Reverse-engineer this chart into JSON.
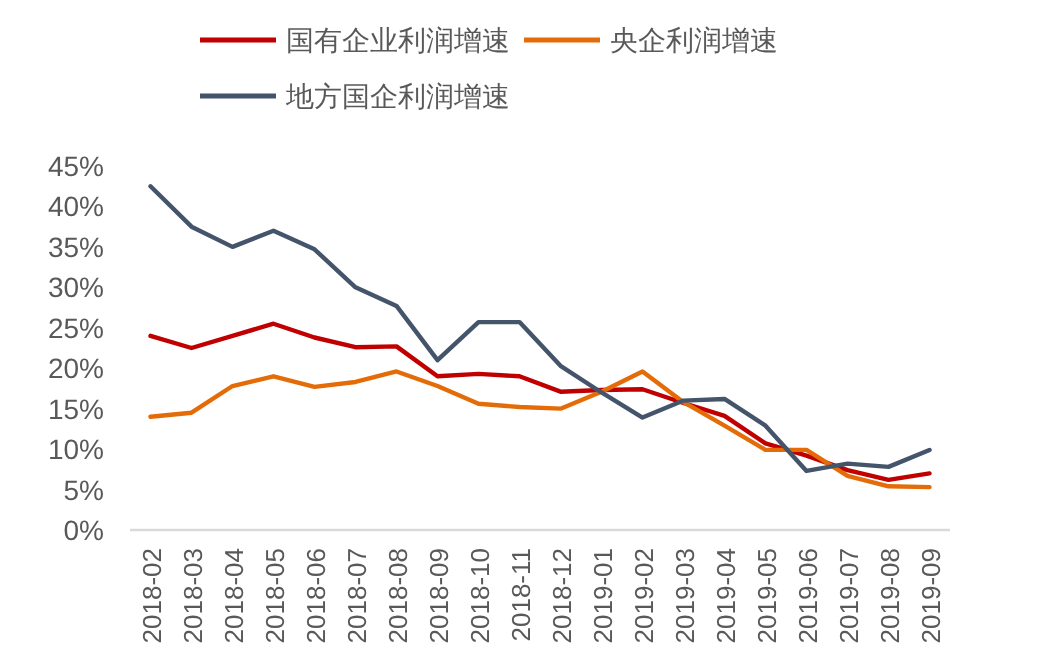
{
  "chart_data": {
    "type": "line",
    "categories": [
      "2018-02",
      "2018-03",
      "2018-04",
      "2018-05",
      "2018-06",
      "2018-07",
      "2018-08",
      "2018-09",
      "2018-10",
      "2018-11",
      "2018-12",
      "2019-01",
      "2019-02",
      "2019-03",
      "2019-04",
      "2019-05",
      "2019-06",
      "2019-07",
      "2019-08",
      "2019-09"
    ],
    "series": [
      {
        "name": "国有企业利润增速",
        "color": "#c00000",
        "values": [
          24,
          22.5,
          24,
          25.5,
          23.8,
          22.6,
          22.7,
          19,
          19.3,
          19,
          17.1,
          17.3,
          17.4,
          15.7,
          14.1,
          10.7,
          9.2,
          7.4,
          6.2,
          7
        ]
      },
      {
        "name": "央企利润增速",
        "color": "#e36c09",
        "values": [
          14,
          14.5,
          17.8,
          19,
          17.7,
          18.3,
          19.6,
          17.8,
          15.6,
          15.2,
          15,
          17.1,
          19.6,
          15.8,
          12.9,
          9.9,
          9.9,
          6.7,
          5.4,
          5.3
        ]
      },
      {
        "name": "地方国企利润增速",
        "color": "#44546a",
        "values": [
          42.5,
          37.5,
          35,
          37,
          34.7,
          30,
          27.7,
          21,
          25.7,
          25.7,
          20.3,
          17,
          13.9,
          16,
          16.2,
          12.9,
          7.3,
          8.2,
          7.8,
          9.9
        ]
      }
    ],
    "ylim": [
      0,
      45
    ],
    "yticks": [
      {
        "value": 0,
        "label": "0%"
      },
      {
        "value": 5,
        "label": "5%"
      },
      {
        "value": 10,
        "label": "10%"
      },
      {
        "value": 15,
        "label": "15%"
      },
      {
        "value": 20,
        "label": "20%"
      },
      {
        "value": 25,
        "label": "25%"
      },
      {
        "value": 30,
        "label": "30%"
      },
      {
        "value": 35,
        "label": "35%"
      },
      {
        "value": 40,
        "label": "40%"
      },
      {
        "value": 45,
        "label": "45%"
      }
    ],
    "grid": false,
    "legend": "top",
    "marker": "none",
    "line_style": "solid"
  }
}
